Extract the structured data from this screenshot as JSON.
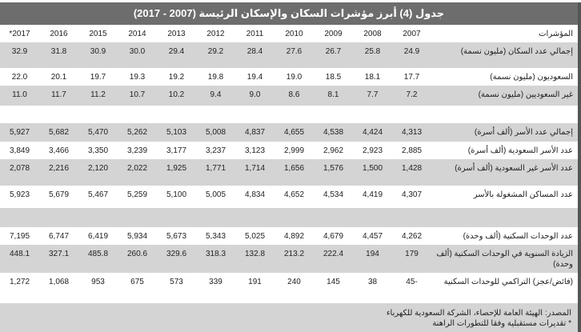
{
  "title": "جدول (4) أبرز مؤشرات السكان والإسكان الرئيسة (2007 - 2017)",
  "header": {
    "label": "المؤشرات",
    "years": [
      "2007",
      "2008",
      "2009",
      "2010",
      "2011",
      "2012",
      "2013",
      "2014",
      "2015",
      "2016",
      "2017*"
    ]
  },
  "rows": [
    {
      "label": "إجمالي عدد السكان (مليون نسمة)",
      "values": [
        "24.9",
        "25.8",
        "26.7",
        "27.6",
        "28.4",
        "29.2",
        "29.4",
        "30.0",
        "30.9",
        "31.8",
        "32.9"
      ]
    },
    {
      "label": "السعوديون (مليون نسمة)",
      "values": [
        "17.7",
        "18.1",
        "18.5",
        "19.0",
        "19.4",
        "19.8",
        "19.2",
        "19.3",
        "19.7",
        "20.1",
        "22.0"
      ]
    },
    {
      "label": "غير السعوديين (مليون نسمة)",
      "values": [
        "7.2",
        "7.7",
        "8.1",
        "8.6",
        "9.0",
        "9.4",
        "10.2",
        "10.7",
        "11.2",
        "11.7",
        "11.0"
      ]
    },
    {
      "label": "",
      "values": []
    },
    {
      "label": "إجمالي عدد الأسر (ألف أسرة)",
      "values": [
        "4,313",
        "4,424",
        "4,538",
        "4,655",
        "4,837",
        "5,008",
        "5,103",
        "5,262",
        "5,470",
        "5,682",
        "5,927"
      ]
    },
    {
      "label": "عدد الأسر السعودية (ألف أسرة)",
      "values": [
        "2,885",
        "2,923",
        "2,962",
        "2,999",
        "3,123",
        "3,237",
        "3,177",
        "3,239",
        "3,350",
        "3,466",
        "3,849"
      ]
    },
    {
      "label": "عدد الأسر غير السعودية (ألف أسرة)",
      "values": [
        "1,428",
        "1,500",
        "1,576",
        "1,656",
        "1,714",
        "1,771",
        "1,925",
        "2,022",
        "2,120",
        "2,216",
        "2,078"
      ]
    },
    {
      "label": "عدد المساكن المشغولة بالأسر",
      "values": [
        "4,307",
        "4,419",
        "4,534",
        "4,652",
        "4,834",
        "5,005",
        "5,100",
        "5,259",
        "5,467",
        "5,679",
        "5,923"
      ]
    },
    {
      "label": "",
      "values": []
    },
    {
      "label": "عدد الوحدات السكنية (ألف وحدة)",
      "values": [
        "4,262",
        "4,457",
        "4,679",
        "4,892",
        "5,025",
        "5,343",
        "5,673",
        "5,934",
        "6,419",
        "6,747",
        "7,195"
      ]
    },
    {
      "label": "الزيادة السنوية في الوحدات السكنية (ألف وحدة)",
      "values": [
        "179",
        "194",
        "222.4",
        "213.2",
        "132.8",
        "318.3",
        "329.6",
        "260.6",
        "485.8",
        "327.1",
        "448.1"
      ]
    },
    {
      "label": "(فائض/عجز) التراكمي للوحدات السكنية",
      "values": [
        "-45",
        "38",
        "145",
        "240",
        "191",
        "339",
        "573",
        "675",
        "953",
        "1,068",
        "1,272"
      ]
    }
  ],
  "footer": {
    "source": "المصدر: الهيئة العامة للإحصاء، الشركة السعودية للكهرباء",
    "note": "* تقديرات مستقبلية وفقا للتطورات الراهنة"
  }
}
